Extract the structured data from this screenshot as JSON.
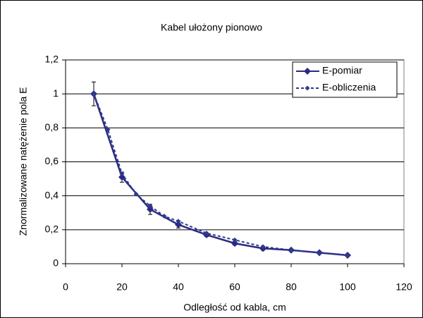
{
  "chart_data": {
    "type": "line",
    "title": "Kabel ułożony pionowo",
    "xlabel": "Odległość od kabla, cm",
    "ylabel": "Znormalizowane natężenie pola E",
    "xlim": [
      0,
      120
    ],
    "xticks": [
      0,
      20,
      40,
      60,
      80,
      100,
      120
    ],
    "ylim": [
      0,
      1.2
    ],
    "yticks": [
      0,
      {
        "value": 0.2,
        "label": "0,2"
      },
      {
        "value": 0.4,
        "label": "0,4"
      },
      {
        "value": 0.6,
        "label": "0,6"
      },
      {
        "value": 0.8,
        "label": "0,8"
      },
      1,
      {
        "value": 1.2,
        "label": "1,2"
      }
    ],
    "grid": true,
    "legend": "upper right",
    "series": [
      {
        "name": "E-pomiar",
        "color": "#2b2a83",
        "dashed": false,
        "x": [
          10,
          20,
          30,
          40,
          50,
          60,
          70,
          80,
          90,
          100
        ],
        "values": [
          1.0,
          0.51,
          0.32,
          0.23,
          0.17,
          0.12,
          0.09,
          0.08,
          0.065,
          0.05
        ],
        "errors": [
          0.07,
          0.03,
          0.03,
          0.02,
          0.01,
          0.01,
          0.01,
          0.005,
          0.005,
          0.005
        ]
      },
      {
        "name": "E-obliczenia",
        "color": "#2f3a8a",
        "dashed": true,
        "x": [
          10,
          15,
          20,
          25,
          30,
          35,
          40,
          50,
          60,
          70,
          80,
          90,
          100
        ],
        "values": [
          1.0,
          0.79,
          0.53,
          0.41,
          0.34,
          0.28,
          0.25,
          0.18,
          0.14,
          0.1,
          0.08,
          0.065,
          0.05
        ]
      }
    ]
  }
}
